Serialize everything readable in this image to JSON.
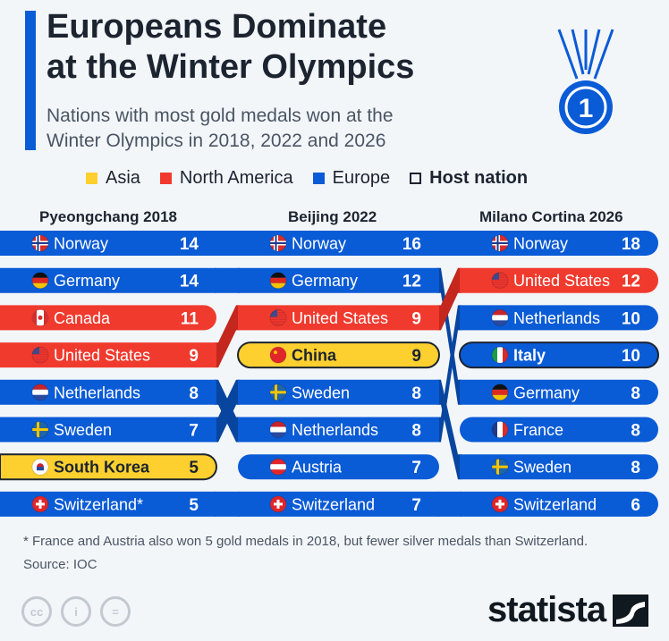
{
  "header": {
    "title_line1": "Europeans Dominate",
    "title_line2": "at the Winter Olympics",
    "subtitle_line1": "Nations with most gold medals won at the",
    "subtitle_line2": "Winter Olympics in 2018, 2022 and 2026",
    "medal_label": "1"
  },
  "legend": [
    {
      "label": "Asia",
      "color": "#fdd02f"
    },
    {
      "label": "North America",
      "color": "#f03a2e"
    },
    {
      "label": "Europe",
      "color": "#0a5bd6"
    },
    {
      "label": "Host nation",
      "color": "outline"
    }
  ],
  "colors": {
    "Europe": "#0a5bd6",
    "North America": "#f03a2e",
    "Asia": "#fdd02f"
  },
  "chart_data": {
    "type": "bump",
    "games": [
      {
        "name": "Pyeongchang 2018",
        "rows": [
          {
            "country": "Norway",
            "label": "Norway",
            "gold": 14,
            "region": "Europe"
          },
          {
            "country": "Germany",
            "label": "Germany",
            "gold": 14,
            "region": "Europe"
          },
          {
            "country": "Canada",
            "label": "Canada",
            "gold": 11,
            "region": "North America"
          },
          {
            "country": "United States",
            "label": "United States",
            "gold": 9,
            "region": "North America"
          },
          {
            "country": "Netherlands",
            "label": "Netherlands",
            "gold": 8,
            "region": "Europe"
          },
          {
            "country": "Sweden",
            "label": "Sweden",
            "gold": 7,
            "region": "Europe"
          },
          {
            "country": "South Korea",
            "label": "South Korea",
            "gold": 5,
            "region": "Asia",
            "host": true
          },
          {
            "country": "Switzerland",
            "label": "Switzerland*",
            "gold": 5,
            "region": "Europe"
          }
        ]
      },
      {
        "name": "Beijing 2022",
        "rows": [
          {
            "country": "Norway",
            "label": "Norway",
            "gold": 16,
            "region": "Europe"
          },
          {
            "country": "Germany",
            "label": "Germany",
            "gold": 12,
            "region": "Europe"
          },
          {
            "country": "United States",
            "label": "United States",
            "gold": 9,
            "region": "North America"
          },
          {
            "country": "China",
            "label": "China",
            "gold": 9,
            "region": "Asia",
            "host": true
          },
          {
            "country": "Sweden",
            "label": "Sweden",
            "gold": 8,
            "region": "Europe"
          },
          {
            "country": "Netherlands",
            "label": "Netherlands",
            "gold": 8,
            "region": "Europe"
          },
          {
            "country": "Austria",
            "label": "Austria",
            "gold": 7,
            "region": "Europe"
          },
          {
            "country": "Switzerland",
            "label": "Switzerland",
            "gold": 7,
            "region": "Europe"
          }
        ]
      },
      {
        "name": "Milano Cortina 2026",
        "rows": [
          {
            "country": "Norway",
            "label": "Norway",
            "gold": 18,
            "region": "Europe"
          },
          {
            "country": "United States",
            "label": "United States",
            "gold": 12,
            "region": "North America"
          },
          {
            "country": "Netherlands",
            "label": "Netherlands",
            "gold": 10,
            "region": "Europe"
          },
          {
            "country": "Italy",
            "label": "Italy",
            "gold": 10,
            "region": "Europe",
            "host": true
          },
          {
            "country": "Germany",
            "label": "Germany",
            "gold": 8,
            "region": "Europe"
          },
          {
            "country": "France",
            "label": "France",
            "gold": 8,
            "region": "Europe"
          },
          {
            "country": "Sweden",
            "label": "Sweden",
            "gold": 8,
            "region": "Europe"
          },
          {
            "country": "Switzerland",
            "label": "Switzerland",
            "gold": 6,
            "region": "Europe"
          }
        ]
      }
    ]
  },
  "footer": {
    "note": "* France and Austria also won 5 gold medals in 2018, but fewer silver medals than Switzerland.",
    "source": "Source: IOC",
    "brand": "statista",
    "license_icons": [
      "cc-icon",
      "by-icon",
      "nd-icon"
    ]
  }
}
